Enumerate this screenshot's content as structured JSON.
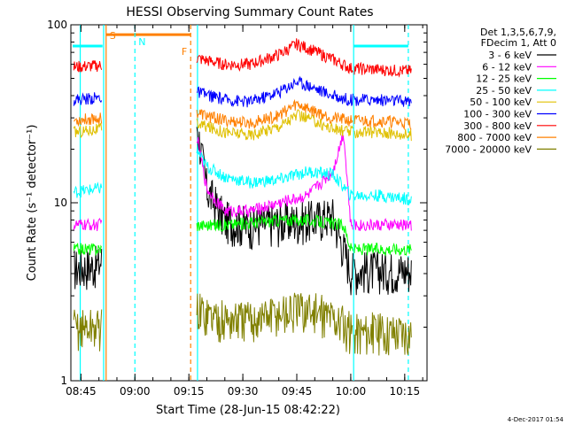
{
  "chart_data": {
    "type": "line",
    "title": "HESSI Observing Summary Count Rates",
    "xlabel": "Start Time (28-Jun-15 08:42:22)",
    "ylabel": "Count Rate (s⁻¹ detector⁻¹)",
    "yscale": "log",
    "ylim": [
      1,
      100
    ],
    "xlim_minutes": [
      8.7,
      10.35
    ],
    "x_tick_labels": [
      "08:45",
      "09:00",
      "09:15",
      "09:30",
      "09:45",
      "10:00",
      "10:15"
    ],
    "x_tick_minutes_after_08_00": [
      45,
      60,
      75,
      90,
      105,
      120,
      135
    ],
    "y_tick_labels": [
      "1",
      "10",
      "100"
    ],
    "y_tick_values": [
      1,
      10,
      100
    ],
    "legend_header": [
      "Det 1,3,5,6,7,9,",
      "FDecim 1, Att 0"
    ],
    "legend_position": "right",
    "series": [
      {
        "name": "3 - 6 keV",
        "color": "#000000",
        "x_minutes": [
          43,
          50,
          77,
          80,
          85,
          92,
          100,
          108,
          115,
          120,
          128,
          137
        ],
        "values": [
          4.3,
          4.5,
          30,
          12,
          8,
          7.5,
          7.8,
          8,
          8.5,
          4.2,
          4.2,
          4.2
        ]
      },
      {
        "name": "6 - 12 keV",
        "color": "#ff00ff",
        "x_minutes": [
          43,
          50,
          77,
          80,
          85,
          92,
          100,
          108,
          115,
          118,
          120,
          128,
          137
        ],
        "values": [
          7.5,
          7.5,
          25,
          12,
          9,
          9,
          10,
          11,
          15,
          25,
          7.5,
          7.5,
          7.5
        ]
      },
      {
        "name": "12 - 25 keV",
        "color": "#00ff00",
        "x_minutes": [
          43,
          50,
          77,
          85,
          100,
          108,
          118,
          120,
          128,
          137
        ],
        "values": [
          5.5,
          5.5,
          7.5,
          7.5,
          8,
          8,
          7.5,
          5.5,
          5.5,
          5.5
        ]
      },
      {
        "name": "25 - 50 keV",
        "color": "#00ffff",
        "x_minutes": [
          43,
          50,
          77,
          80,
          85,
          92,
          100,
          108,
          115,
          120,
          128,
          137
        ],
        "values": [
          11.5,
          12,
          20,
          16,
          14,
          13,
          13.5,
          15,
          14.5,
          11,
          11,
          10.5
        ]
      },
      {
        "name": "50 - 100 keV",
        "color": "#e0c000",
        "x_minutes": [
          43,
          50,
          77,
          85,
          92,
          100,
          105,
          108,
          115,
          120,
          128,
          137
        ],
        "values": [
          25,
          26,
          28,
          25,
          24,
          27,
          31,
          30,
          26,
          25,
          25,
          24
        ]
      },
      {
        "name": "100 - 300 keV",
        "color": "#0000ff",
        "x_minutes": [
          43,
          50,
          77,
          85,
          92,
          100,
          105,
          108,
          115,
          120,
          128,
          137
        ],
        "values": [
          38,
          39,
          42,
          38,
          37,
          42,
          48,
          46,
          40,
          38,
          38,
          37
        ]
      },
      {
        "name": "300 - 800 keV",
        "color": "#ff0000",
        "x_minutes": [
          43,
          50,
          77,
          85,
          92,
          100,
          105,
          108,
          115,
          120,
          128,
          137
        ],
        "values": [
          58,
          59,
          65,
          60,
          60,
          68,
          78,
          74,
          64,
          57,
          56,
          55
        ]
      },
      {
        "name": "800 - 7000 keV",
        "color": "#ff8000",
        "x_minutes": [
          43,
          50,
          77,
          85,
          92,
          100,
          105,
          108,
          115,
          120,
          128,
          137
        ],
        "values": [
          29,
          30,
          32,
          29,
          28,
          31,
          36,
          34,
          30,
          29,
          29,
          28
        ]
      },
      {
        "name": "7000 - 20000 keV",
        "color": "#808000",
        "x_minutes": [
          43,
          50,
          77,
          85,
          92,
          100,
          108,
          115,
          120,
          128,
          137
        ],
        "values": [
          2,
          2,
          2.5,
          2.2,
          2.2,
          2.4,
          2.5,
          2.3,
          1.9,
          1.9,
          1.9
        ]
      }
    ],
    "annotations": [
      {
        "label": "S",
        "x_minutes": 52,
        "color": "#ff8000"
      },
      {
        "label": "N",
        "x_minutes": 60,
        "color": "#00ffff"
      },
      {
        "label": "F",
        "x_minutes": 75.5,
        "color": "#ff8000"
      }
    ],
    "vertical_markers": [
      {
        "x_minutes": 44.8,
        "color": "#00ffff",
        "style": "solid"
      },
      {
        "x_minutes": 51.3,
        "color": "#00ffff",
        "style": "solid"
      },
      {
        "x_minutes": 52.0,
        "color": "#ff8000",
        "style": "solid"
      },
      {
        "x_minutes": 60.0,
        "color": "#00ffff",
        "style": "dashed"
      },
      {
        "x_minutes": 75.5,
        "color": "#ff8000",
        "style": "dashed"
      },
      {
        "x_minutes": 77.4,
        "color": "#00ffff",
        "style": "solid"
      },
      {
        "x_minutes": 120.8,
        "color": "#00ffff",
        "style": "solid"
      },
      {
        "x_minutes": 136.0,
        "color": "#00ffff",
        "style": "dashed"
      }
    ],
    "horizontal_bars": [
      {
        "from_minutes": 42.7,
        "to_minutes": 51.0,
        "value": 76,
        "color": "#00ffff"
      },
      {
        "from_minutes": 52.0,
        "to_minutes": 75.5,
        "value": 88,
        "color": "#ff8000"
      },
      {
        "from_minutes": 120.8,
        "to_minutes": 136.0,
        "value": 76,
        "color": "#00ffff"
      }
    ]
  },
  "footer_date": "4-Dec-2017 01:54"
}
